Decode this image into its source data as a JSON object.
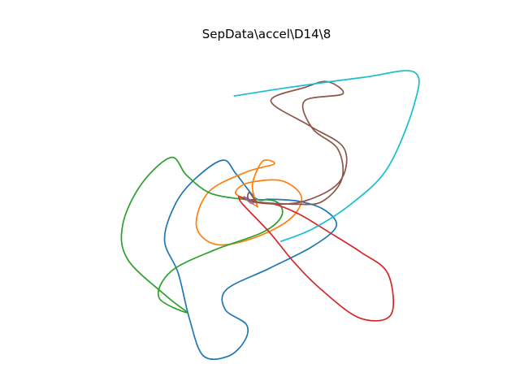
{
  "chart_data": {
    "type": "line",
    "title": "SepData\\accel\\D14\\8",
    "xlabel": "",
    "ylabel": "",
    "axes_visible": false,
    "grid": false,
    "legend": "none",
    "xlim": [
      0,
      100
    ],
    "ylim": [
      0,
      100
    ],
    "series": [
      {
        "color": "#1f77b4",
        "x": [
          50.3,
          58.0,
          64.5,
          67.3,
          61.5,
          50.7,
          40.1,
          39.8,
          45.0,
          44.6,
          40.5,
          34.3,
          30.9,
          28.1,
          24.7,
          27.6,
          32.8,
          39.2,
          42.4,
          47.3,
          50.3
        ],
        "y": [
          49.3,
          48.6,
          45.6,
          40.2,
          33.6,
          26.2,
          19.2,
          12.4,
          7.5,
          2.1,
          -3.1,
          -2.9,
          9.3,
          24.6,
          35.7,
          48.2,
          56.7,
          62.3,
          57.8,
          49.6,
          49.3
        ]
      },
      {
        "color": "#ff7f0e",
        "x": [
          47.8,
          46.5,
          49.0,
          51.9,
          44.7,
          35.6,
          32.6,
          37.4,
          46.5,
          55.6,
          58.7,
          53.8,
          45.4,
          42.3,
          44.7,
          47.8
        ],
        "y": [
          46.7,
          54.0,
          61.9,
          61.0,
          58.2,
          51.6,
          40.3,
          34.2,
          36.2,
          42.4,
          49.9,
          55.4,
          54.7,
          51.5,
          49.3,
          46.7
        ]
      },
      {
        "color": "#2ca02c",
        "x": [
          45.0,
          52.2,
          53.8,
          49.0,
          37.2,
          26.4,
          23.3,
          30.4,
          25.3,
          15.6,
          14.3,
          18.9,
          26.3,
          30.2,
          36.2,
          45.0
        ],
        "y": [
          49.1,
          48.6,
          43.8,
          38.2,
          32.4,
          25.3,
          16.5,
          11.4,
          16.8,
          29.1,
          40.6,
          54.2,
          63.2,
          57.2,
          51.2,
          49.1
        ]
      },
      {
        "color": "#d62728",
        "x": [
          43.1,
          44.1,
          50.9,
          56.8,
          63.7,
          73.2,
          80.9,
          80.1,
          73.3,
          65.6,
          58.5,
          52.5,
          47.8,
          43.1
        ],
        "y": [
          50.1,
          47.6,
          38.0,
          28.3,
          19.0,
          9.6,
          10.8,
          24.5,
          31.7,
          38.2,
          44.0,
          47.4,
          48.4,
          50.1
        ]
      },
      {
        "color": "#9467bd",
        "x": [
          44.4,
          45.0,
          45.6,
          46.2,
          46.8,
          45.6,
          44.4
        ],
        "y": [
          50.1,
          49.5,
          48.5,
          47.9,
          48.2,
          49.3,
          50.1
        ]
      },
      {
        "color": "#8c564b",
        "x": [
          47.5,
          57.5,
          63.8,
          68.7,
          67.7,
          61.4,
          59.4,
          68.9,
          65.1,
          59.6,
          51.1,
          60.9,
          69.3,
          68.0,
          58.1,
          46.6,
          45.7,
          47.5
        ],
        "y": [
          48.3,
          47.6,
          48.5,
          56.0,
          66.0,
          72.9,
          82.0,
          84.4,
          88.5,
          86.6,
          82.0,
          73.6,
          66.1,
          54.9,
          48.2,
          48.4,
          51.6,
          48.3
        ]
      },
      {
        "color": "#17becf",
        "x": [
          53.6,
          61.6,
          71.2,
          80.1,
          86.7,
          86.6,
          74.0,
          55.3,
          42.0
        ],
        "y": [
          35.2,
          39.5,
          47.9,
          59.8,
          81.1,
          91.7,
          89.9,
          86.5,
          83.7
        ]
      }
    ]
  }
}
